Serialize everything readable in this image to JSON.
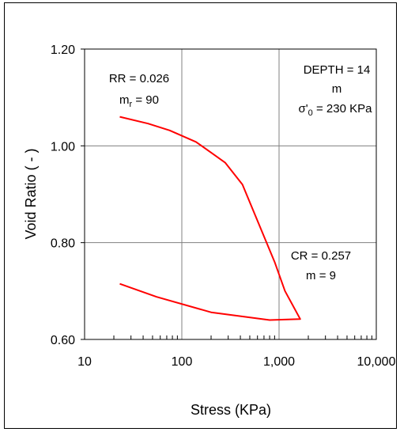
{
  "chart_data": {
    "type": "line",
    "xscale": "log",
    "xlim": [
      10,
      10000
    ],
    "ylim": [
      0.6,
      1.2
    ],
    "grid": true,
    "xlabel": "Stress  (KPa)",
    "ylabel": "Void Ratio  ( - )",
    "x_ticks": [
      "10",
      "100",
      "1,000",
      "10,000"
    ],
    "y_ticks": [
      "0.60",
      "0.80",
      "1.00",
      "1.20"
    ],
    "line_color": "#ff0000",
    "series": [
      {
        "x": [
          23,
          45,
          75,
          140,
          210,
          280,
          420,
          900,
          1150,
          1650,
          800,
          200,
          55,
          23
        ],
        "y": [
          1.06,
          1.046,
          1.032,
          1.008,
          0.983,
          0.965,
          0.92,
          0.76,
          0.7,
          0.642,
          0.64,
          0.656,
          0.688,
          0.715
        ]
      }
    ],
    "annotations": {
      "rr": {
        "line1": "RR = 0.026",
        "m_base": "m",
        "m_sub": "r",
        "m_value": " = 90"
      },
      "depth": {
        "line1": "DEPTH = 14",
        "line2": "m",
        "sigma_base": "σ'",
        "sigma_sub": "0",
        "sigma_value": " = 230 KPa"
      },
      "cr": {
        "line1": "CR = 0.257",
        "line2": "m = 9"
      }
    }
  }
}
